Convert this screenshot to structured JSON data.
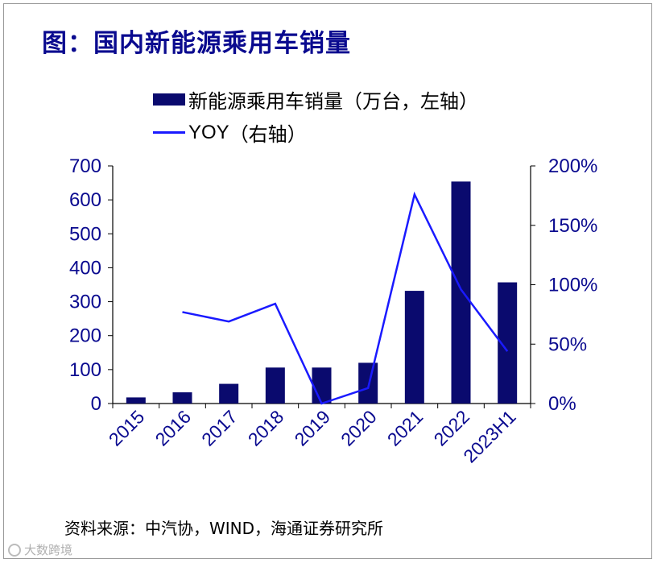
{
  "title": "图：国内新能源乘用车销量",
  "source": "资料来源：中汽协，WIND，海通证券研究所",
  "watermark": "大数跨境",
  "legend": {
    "bar_label": "新能源乘用车销量（万台，左轴）",
    "line_label_yoy": "YOY",
    "line_label_suffix": "（右轴）"
  },
  "colors": {
    "bar": "#0a0a6e",
    "line": "#1a1aff",
    "axis_text": "#0a0a8f",
    "title": "#0a0a8f"
  },
  "chart_data": {
    "type": "bar",
    "title": "国内新能源乘用车销量",
    "categories": [
      "2015",
      "2016",
      "2017",
      "2018",
      "2019",
      "2020",
      "2021",
      "2022",
      "2023H1"
    ],
    "series": [
      {
        "name": "新能源乘用车销量（万台，左轴）",
        "type": "bar",
        "axis": "left",
        "values": [
          18,
          33,
          58,
          106,
          106,
          120,
          332,
          654,
          357
        ]
      },
      {
        "name": "YOY（右轴）",
        "type": "line",
        "axis": "right",
        "values": [
          null,
          0.77,
          0.69,
          0.84,
          0.0,
          0.13,
          1.76,
          0.96,
          0.44
        ]
      }
    ],
    "y_left": {
      "ylim": [
        0,
        700
      ],
      "ticks": [
        0,
        100,
        200,
        300,
        400,
        500,
        600,
        700
      ],
      "tick_labels": [
        "0",
        "100",
        "200",
        "300",
        "400",
        "500",
        "600",
        "700"
      ]
    },
    "y_right": {
      "ylim": [
        0,
        2.0
      ],
      "ticks": [
        0,
        0.5,
        1.0,
        1.5,
        2.0
      ],
      "tick_labels": [
        "0%",
        "50%",
        "100%",
        "150%",
        "200%"
      ]
    },
    "xlabel": "",
    "ylabel": "",
    "legend_position": "top"
  }
}
